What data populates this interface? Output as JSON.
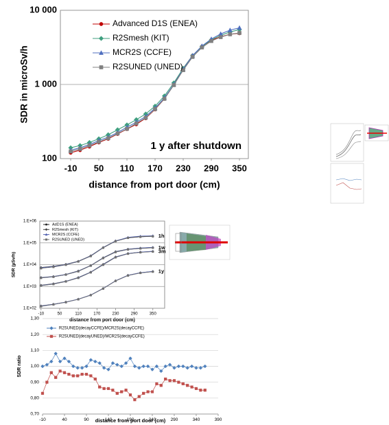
{
  "chart_data": [
    {
      "type": "line",
      "y_label": "SDR in microSv/h",
      "x_label": "distance from port door (cm)",
      "annotation": "1 y after shutdown",
      "log_y": true,
      "grid": true,
      "x": [
        -10,
        10,
        30,
        50,
        70,
        90,
        110,
        130,
        150,
        170,
        190,
        210,
        230,
        250,
        270,
        290,
        310,
        330,
        350
      ],
      "xlim": [
        -32,
        369
      ],
      "xticks": [
        -10,
        50,
        110,
        170,
        230,
        290,
        350
      ],
      "ylim": [
        100,
        10000
      ],
      "yticks": [
        100,
        {
          "value": 1000,
          "label": "1 000"
        },
        {
          "value": 10000,
          "label": "10 000"
        }
      ],
      "series": [
        {
          "name": "Advanced D1S (ENEA)",
          "color": "#c00000",
          "marker": "circle",
          "values": [
            120,
            130,
            145,
            165,
            185,
            215,
            250,
            290,
            350,
            460,
            640,
            1000,
            1650,
            2450,
            3250,
            3950,
            4400,
            4750,
            4900
          ]
        },
        {
          "name": "R2Smesh (KIT)",
          "color": "#3f9f7f",
          "marker": "diamond",
          "values": [
            140,
            150,
            165,
            185,
            210,
            245,
            285,
            335,
            400,
            510,
            700,
            1050,
            1650,
            2450,
            3250,
            4000,
            4600,
            5100,
            5500
          ]
        },
        {
          "name": "MCR2S (CCFE)",
          "color": "#4f6fbf",
          "marker": "triangle",
          "values": [
            130,
            140,
            155,
            175,
            195,
            225,
            265,
            310,
            370,
            480,
            660,
            1000,
            1600,
            2450,
            3300,
            4100,
            4800,
            5400,
            5800
          ]
        },
        {
          "name": "R2SUNED (UNED)",
          "color": "#808080",
          "marker": "square",
          "values": [
            125,
            135,
            150,
            168,
            188,
            218,
            252,
            298,
            355,
            465,
            640,
            980,
            1560,
            2350,
            3150,
            3850,
            4350,
            4750,
            4950
          ]
        }
      ]
    },
    {
      "type": "line",
      "y_label": "SDR (µSv/h)",
      "x_label": "distance from port door (cm)",
      "log_y": true,
      "grid": true,
      "x": [
        -10,
        30,
        70,
        110,
        150,
        190,
        230,
        270,
        310,
        350
      ],
      "xlim": [
        -14,
        388
      ],
      "xticks": [
        -10,
        50,
        110,
        170,
        230,
        290,
        350
      ],
      "ylim": [
        100,
        1000000
      ],
      "yticks": [
        {
          "value": 100,
          "label": "1.E+02"
        },
        {
          "value": 1000,
          "label": "1.E+03"
        },
        {
          "value": 10000,
          "label": "1.E+04"
        },
        {
          "value": 100000,
          "label": "1.E+05"
        },
        {
          "value": 1000000,
          "label": "1.E+06"
        }
      ],
      "time_labels": [
        "1h",
        "1w",
        "3m",
        "1y"
      ],
      "series": [
        {
          "name": "AdD1S (ENEA)",
          "color": "#202020",
          "marker": "circle",
          "values": [
            [
              7000,
              8000,
              10000,
              14000,
              25000,
              60000,
              120000,
              170000,
              190000,
              200000
            ],
            [
              2500,
              2800,
              3500,
              5000,
              9000,
              20000,
              38000,
              50000,
              56000,
              60000
            ],
            [
              1100,
              1300,
              1700,
              2500,
              4500,
              10000,
              22000,
              32000,
              37000,
              40000
            ],
            [
              125,
              150,
              190,
              260,
              400,
              800,
              1800,
              3200,
              4200,
              4800
            ]
          ]
        },
        {
          "name": "R2Smesh (KIT)",
          "color": "#404040",
          "marker": "diamond",
          "values": [
            [
              7500,
              8500,
              10500,
              14500,
              26000,
              62000,
              125000,
              175000,
              195000,
              205000
            ],
            [
              2600,
              2900,
              3600,
              5200,
              9300,
              21000,
              40000,
              52000,
              58000,
              62000
            ],
            [
              1150,
              1350,
              1750,
              2600,
              4600,
              10500,
              23000,
              33000,
              38000,
              41000
            ],
            [
              130,
              155,
              195,
              265,
              410,
              820,
              1850,
              3300,
              4300,
              4900
            ]
          ]
        },
        {
          "name": "MCR2S (CCFE)",
          "color": "#5060b0",
          "marker": "triangle",
          "values": [
            [
              7200,
              8200,
              10200,
              14200,
              25500,
              61000,
              123000,
              180000,
              205000,
              215000
            ],
            [
              2550,
              2850,
              3550,
              5100,
              9100,
              20500,
              39000,
              51000,
              58000,
              63000
            ],
            [
              1120,
              1320,
              1720,
              2550,
              4550,
              10200,
              22500,
              32500,
              38000,
              41500
            ],
            [
              128,
              152,
              192,
              262,
              405,
              810,
              1820,
              3250,
              4300,
              5000
            ]
          ]
        },
        {
          "name": "R2SUNED (UNED)",
          "color": "#707070",
          "marker": "square",
          "values": [
            [
              6800,
              7800,
              9800,
              13800,
              24500,
              59000,
              118000,
              168000,
              188000,
              198000
            ],
            [
              2450,
              2750,
              3450,
              4900,
              8900,
              19800,
              37500,
              49500,
              55000,
              59000
            ],
            [
              1080,
              1280,
              1680,
              2450,
              4400,
              9800,
              21500,
              31500,
              36500,
              39500
            ],
            [
              122,
              148,
              188,
              255,
              395,
              790,
              1780,
              3150,
              4150,
              4750
            ]
          ]
        }
      ]
    },
    {
      "type": "line",
      "y_label": "SDR ratio",
      "x_label": "distance from port door (cm)",
      "log_y": false,
      "grid": true,
      "x": [
        -10,
        0,
        10,
        20,
        30,
        40,
        50,
        60,
        70,
        80,
        90,
        100,
        110,
        120,
        130,
        140,
        150,
        160,
        170,
        180,
        190,
        200,
        210,
        220,
        230,
        240,
        250,
        260,
        270,
        280,
        290,
        300,
        310,
        320,
        330,
        340,
        350,
        360
      ],
      "xlim": [
        -10,
        390
      ],
      "xticks": [
        -10,
        40,
        90,
        140,
        190,
        240,
        290,
        340,
        390
      ],
      "ylim": [
        0.7,
        1.3
      ],
      "yticks": [
        {
          "value": 0.7,
          "label": "0,70"
        },
        {
          "value": 0.8,
          "label": "0,80"
        },
        {
          "value": 0.9,
          "label": "0,90"
        },
        {
          "value": 1.0,
          "label": "1,00"
        },
        {
          "value": 1.1,
          "label": "1,10"
        },
        {
          "value": 1.2,
          "label": "1,20"
        },
        {
          "value": 1.3,
          "label": "1,30"
        }
      ],
      "series": [
        {
          "name": "R2SUNED(decayCCFE)/MCR2S(decayCCFE)",
          "color": "#4f81bd",
          "marker": "diamond",
          "values": [
            1.0,
            1.01,
            1.03,
            1.08,
            1.03,
            1.05,
            1.03,
            1.0,
            0.99,
            0.99,
            1.0,
            1.04,
            1.03,
            1.02,
            0.99,
            0.98,
            1.02,
            1.01,
            1.0,
            1.02,
            1.05,
            1.0,
            0.99,
            1.0,
            1.0,
            0.98,
            1.0,
            0.97,
            1.0,
            1.01,
            0.99,
            1.0,
            1.0,
            0.99,
            1.0,
            0.99,
            0.99,
            1.0
          ]
        },
        {
          "name": "R2SUNED(decayUNED)/MCR2S(decayCCFE)",
          "color": "#c0504d",
          "marker": "square",
          "values": [
            0.83,
            0.9,
            0.96,
            0.93,
            0.97,
            0.96,
            0.95,
            0.94,
            0.94,
            0.95,
            0.95,
            0.94,
            0.92,
            0.87,
            0.86,
            0.86,
            0.85,
            0.83,
            0.84,
            0.85,
            0.82,
            0.79,
            0.81,
            0.83,
            0.84,
            0.84,
            0.89,
            0.88,
            0.92,
            0.91,
            0.91,
            0.9,
            0.89,
            0.88,
            0.87,
            0.86,
            0.85,
            0.85
          ]
        }
      ]
    }
  ]
}
